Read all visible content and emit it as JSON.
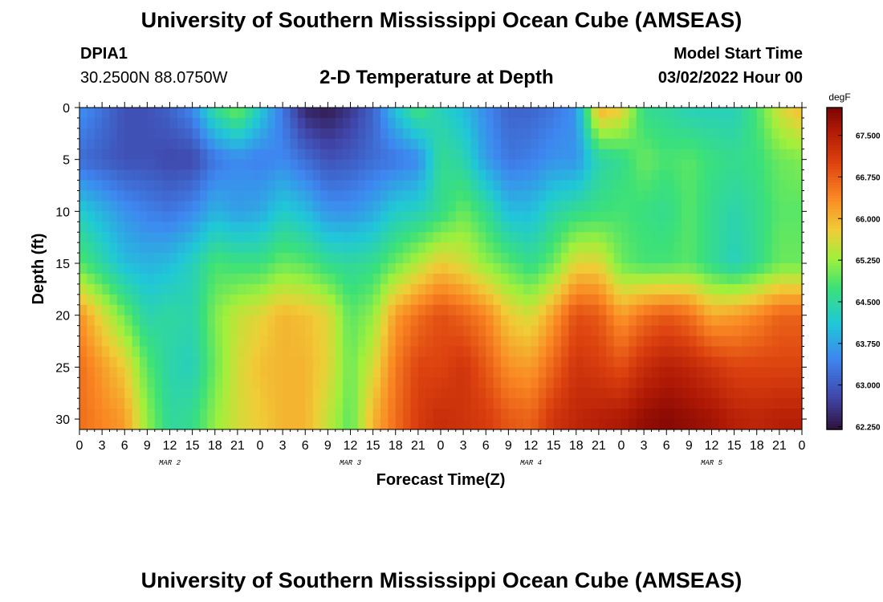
{
  "header": {
    "title": "University of Southern Mississippi Ocean Cube (AMSEAS)",
    "station": "DPIA1",
    "coords": "30.2500N  88.0750W",
    "chart_title": "2-D Temperature at Depth",
    "start_label": "Model Start Time",
    "start_value": "03/02/2022 Hour 00"
  },
  "footer": {
    "title": "University of Southern Mississippi Ocean Cube (AMSEAS)"
  },
  "chart_data": {
    "type": "heatmap",
    "title": "2-D Temperature at Depth",
    "xlabel": "Forecast Time(Z)",
    "ylabel": "Depth (ft)",
    "x_ticks": [
      "0",
      "3",
      "6",
      "9",
      "12",
      "15",
      "18",
      "21",
      "0",
      "3",
      "6",
      "9",
      "12",
      "15",
      "18",
      "21",
      "0",
      "3",
      "6",
      "9",
      "12",
      "15",
      "18",
      "21",
      "0",
      "3",
      "6",
      "9",
      "12",
      "15",
      "18",
      "21",
      "0"
    ],
    "day_labels": [
      "MAR 2",
      "MAR 3",
      "MAR 4",
      "MAR 5"
    ],
    "y_ticks": [
      0,
      5,
      10,
      15,
      20,
      25,
      30
    ],
    "ylim": [
      0,
      31
    ],
    "xlim_hours": [
      0,
      96
    ],
    "colorbar": {
      "unit": "degF",
      "ticks": [
        "67.500",
        "66.750",
        "66.000",
        "65.250",
        "64.500",
        "63.750",
        "63.000",
        "62.250"
      ],
      "range": [
        62.2,
        68.0
      ]
    },
    "profile_hours": [
      0,
      6,
      9,
      12,
      15,
      18,
      21,
      24,
      27,
      30,
      33,
      36,
      39,
      42,
      45,
      48,
      51,
      54,
      57,
      60,
      63,
      66,
      69,
      72,
      75,
      78,
      81,
      84,
      87,
      90,
      93,
      96
    ],
    "profile_depths_ft": [
      0,
      5,
      10,
      15,
      20,
      25,
      30
    ],
    "temperature_degF": [
      [
        63.6,
        63.2,
        64.2,
        64.9,
        66.3,
        66.6,
        66.6
      ],
      [
        62.9,
        62.9,
        63.6,
        64.0,
        65.0,
        65.8,
        66.2
      ],
      [
        62.9,
        62.9,
        63.4,
        63.9,
        64.4,
        64.9,
        65.2
      ],
      [
        63.1,
        62.8,
        63.3,
        64.0,
        64.5,
        64.4,
        64.5
      ],
      [
        63.5,
        62.8,
        63.5,
        64.3,
        64.4,
        64.3,
        64.6
      ],
      [
        64.6,
        63.3,
        63.9,
        64.8,
        65.1,
        65.0,
        65.2
      ],
      [
        65.1,
        63.5,
        63.7,
        64.7,
        65.5,
        65.6,
        65.6
      ],
      [
        64.2,
        63.4,
        63.8,
        64.7,
        65.7,
        65.9,
        65.8
      ],
      [
        63.3,
        63.5,
        64.2,
        65.0,
        66.0,
        66.0,
        66.0
      ],
      [
        62.4,
        63.2,
        64.0,
        64.9,
        65.9,
        66.0,
        66.0
      ],
      [
        62.3,
        62.9,
        63.6,
        64.6,
        65.7,
        65.7,
        65.5
      ],
      [
        62.6,
        63.0,
        63.6,
        64.5,
        64.9,
        65.0,
        64.9
      ],
      [
        63.1,
        63.2,
        63.8,
        64.6,
        65.2,
        65.6,
        66.0
      ],
      [
        64.1,
        63.3,
        64.2,
        65.0,
        66.2,
        66.5,
        66.6
      ],
      [
        64.8,
        63.5,
        64.3,
        65.4,
        66.6,
        67.0,
        67.1
      ],
      [
        64.3,
        64.6,
        64.6,
        65.8,
        66.9,
        67.0,
        67.3
      ],
      [
        64.0,
        64.4,
        65.0,
        65.6,
        66.7,
        67.2,
        67.2
      ],
      [
        63.5,
        63.7,
        64.6,
        65.2,
        66.4,
        66.8,
        67.1
      ],
      [
        63.1,
        63.3,
        64.0,
        64.9,
        65.8,
        66.3,
        66.8
      ],
      [
        63.1,
        63.4,
        64.0,
        64.6,
        65.6,
        66.2,
        66.7
      ],
      [
        63.3,
        63.6,
        64.4,
        65.0,
        66.2,
        66.7,
        67.2
      ],
      [
        63.6,
        63.6,
        64.6,
        65.7,
        66.9,
        67.2,
        67.4
      ],
      [
        66.1,
        64.4,
        64.7,
        65.7,
        66.8,
        67.1,
        67.5
      ],
      [
        65.8,
        64.6,
        64.8,
        65.0,
        66.2,
        66.9,
        67.6
      ],
      [
        64.6,
        65.0,
        64.7,
        64.8,
        66.6,
        67.3,
        67.8
      ],
      [
        64.5,
        64.8,
        64.6,
        64.8,
        66.8,
        67.5,
        67.9
      ],
      [
        64.3,
        64.9,
        64.9,
        64.9,
        66.6,
        67.4,
        67.8
      ],
      [
        64.3,
        64.7,
        64.6,
        64.6,
        66.1,
        67.2,
        67.7
      ],
      [
        64.3,
        64.6,
        64.4,
        64.3,
        66.2,
        67.0,
        67.5
      ],
      [
        64.8,
        64.7,
        64.6,
        64.6,
        66.4,
        67.0,
        67.4
      ],
      [
        65.6,
        65.0,
        64.9,
        65.0,
        66.7,
        67.0,
        67.5
      ],
      [
        66.0,
        65.1,
        64.9,
        65.0,
        66.7,
        67.0,
        67.5
      ]
    ]
  }
}
